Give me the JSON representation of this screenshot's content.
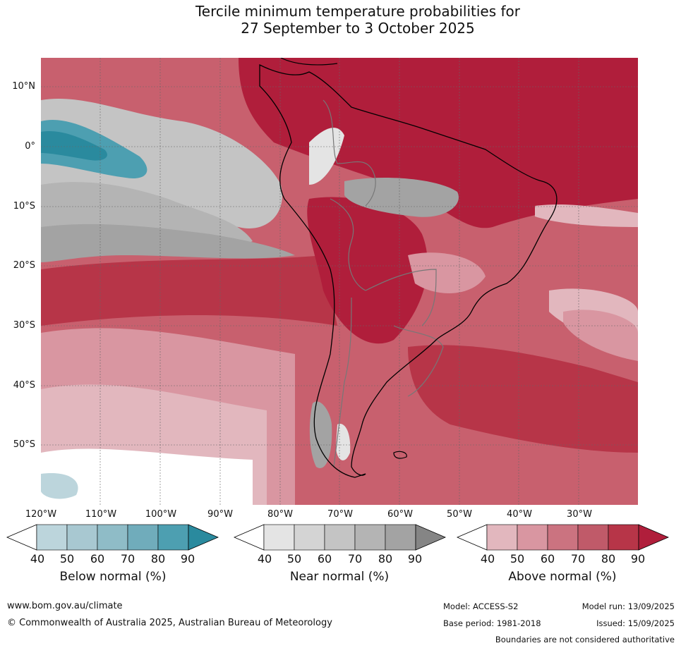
{
  "title": {
    "line1": "Tercile minimum temperature probabilities for",
    "line2": "27 September to 3 October 2025"
  },
  "axes": {
    "lat_labels": [
      "10°N",
      "0°",
      "10°S",
      "20°S",
      "30°S",
      "40°S",
      "50°S"
    ],
    "lon_labels": [
      "120°W",
      "110°W",
      "100°W",
      "90°W",
      "80°W",
      "70°W",
      "60°W",
      "50°W",
      "40°W",
      "30°W"
    ]
  },
  "legend": {
    "below": {
      "title": "Below normal (%)",
      "ticks": [
        "40",
        "50",
        "60",
        "70",
        "80",
        "90"
      ],
      "colors": [
        "#ffffff",
        "#bcd5dc",
        "#a8c8d1",
        "#8fbcc7",
        "#70acbb",
        "#4d9fb1",
        "#2a8a9e"
      ]
    },
    "near": {
      "title": "Near normal (%)",
      "ticks": [
        "40",
        "50",
        "60",
        "70",
        "80",
        "90"
      ],
      "colors": [
        "#ffffff",
        "#e4e4e4",
        "#d4d4d4",
        "#c4c4c4",
        "#b4b4b4",
        "#a3a3a3",
        "#858585"
      ]
    },
    "above": {
      "title": "Above normal (%)",
      "ticks": [
        "40",
        "50",
        "60",
        "70",
        "80",
        "90"
      ],
      "colors": [
        "#ffffff",
        "#e2b7be",
        "#d996a1",
        "#cb7380",
        "#c05a69",
        "#b73548",
        "#b01e3b"
      ]
    }
  },
  "footer": {
    "website": "www.bom.gov.au/climate",
    "copyright": "© Commonwealth of Australia 2025, Australian Bureau of Meteorology",
    "model": "Model: ACCESS-S2",
    "model_run": "Model run: 13/09/2025",
    "base_period": "Base period: 1981-2018",
    "issued": "Issued: 15/09/2025",
    "disclaimer": "Boundaries are not considered authoritative"
  }
}
